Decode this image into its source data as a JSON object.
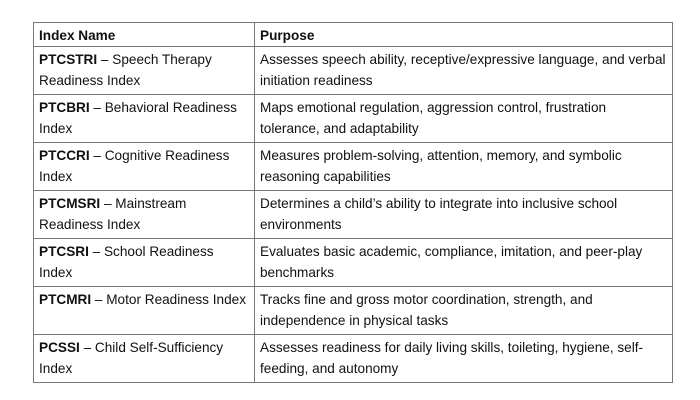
{
  "table": {
    "headers": [
      "Index Name",
      "Purpose"
    ],
    "rows": [
      {
        "code": "PTCSTRI",
        "name": " – Speech Therapy Readiness Index",
        "purpose": "Assesses speech ability, receptive/expressive language, and verbal initiation readiness"
      },
      {
        "code": "PTCBRI",
        "name": " – Behavioral Readiness Index",
        "purpose": "Maps emotional regulation, aggression control, frustration tolerance, and adaptability"
      },
      {
        "code": "PTCCRI",
        "name": " – Cognitive Readiness Index",
        "purpose": "Measures problem-solving, attention, memory, and symbolic reasoning capabilities"
      },
      {
        "code": "PTCMSRI",
        "name": " – Mainstream Readiness Index",
        "purpose": "Determines a child’s ability to integrate into inclusive school environments"
      },
      {
        "code": "PTCSRI",
        "name": " – School Readiness Index",
        "purpose": "Evaluates basic academic, compliance, imitation, and peer-play benchmarks"
      },
      {
        "code": "PTCMRI",
        "name": " – Motor Readiness Index",
        "purpose": "Tracks fine and gross motor coordination, strength, and independence in physical tasks"
      },
      {
        "code": "PCSSI",
        "name": " – Child Self-Sufficiency Index",
        "purpose": "Assesses readiness for daily living skills, toileting, hygiene, self-feeding, and autonomy"
      }
    ]
  }
}
